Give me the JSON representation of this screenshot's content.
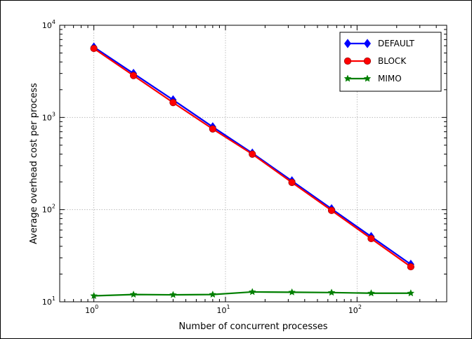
{
  "chart_data": {
    "type": "line",
    "title": "",
    "xlabel": "Number of concurrent processes",
    "ylabel": "Average overhead cost per process",
    "x_scale": "log",
    "y_scale": "log",
    "xlim": [
      0.55,
      480
    ],
    "ylim": [
      10,
      10000
    ],
    "grid": true,
    "legend_position": "top-right",
    "x_ticks": [
      {
        "value": 1,
        "base": "10",
        "exp": "0"
      },
      {
        "value": 10,
        "base": "10",
        "exp": "1"
      },
      {
        "value": 100,
        "base": "10",
        "exp": "2"
      }
    ],
    "y_ticks": [
      {
        "value": 10,
        "base": "10",
        "exp": "1"
      },
      {
        "value": 100,
        "base": "10",
        "exp": "2"
      },
      {
        "value": 1000,
        "base": "10",
        "exp": "3"
      },
      {
        "value": 10000,
        "base": "10",
        "exp": "4"
      }
    ],
    "x": [
      1,
      2,
      4,
      8,
      16,
      32,
      64,
      128,
      256
    ],
    "series": [
      {
        "name": "DEFAULT",
        "color": "#0000ff",
        "marker": "diamond",
        "values": [
          5800,
          3000,
          1550,
          790,
          410,
          205,
          102,
          51,
          25.5
        ]
      },
      {
        "name": "BLOCK",
        "color": "#ff0000",
        "marker": "circle",
        "values": [
          5600,
          2850,
          1450,
          750,
          400,
          197,
          98,
          48.5,
          24
        ]
      },
      {
        "name": "MIMO",
        "color": "#007f00",
        "marker": "star",
        "values": [
          11.6,
          12.0,
          11.9,
          12.0,
          12.8,
          12.7,
          12.6,
          12.4,
          12.4
        ]
      }
    ]
  }
}
